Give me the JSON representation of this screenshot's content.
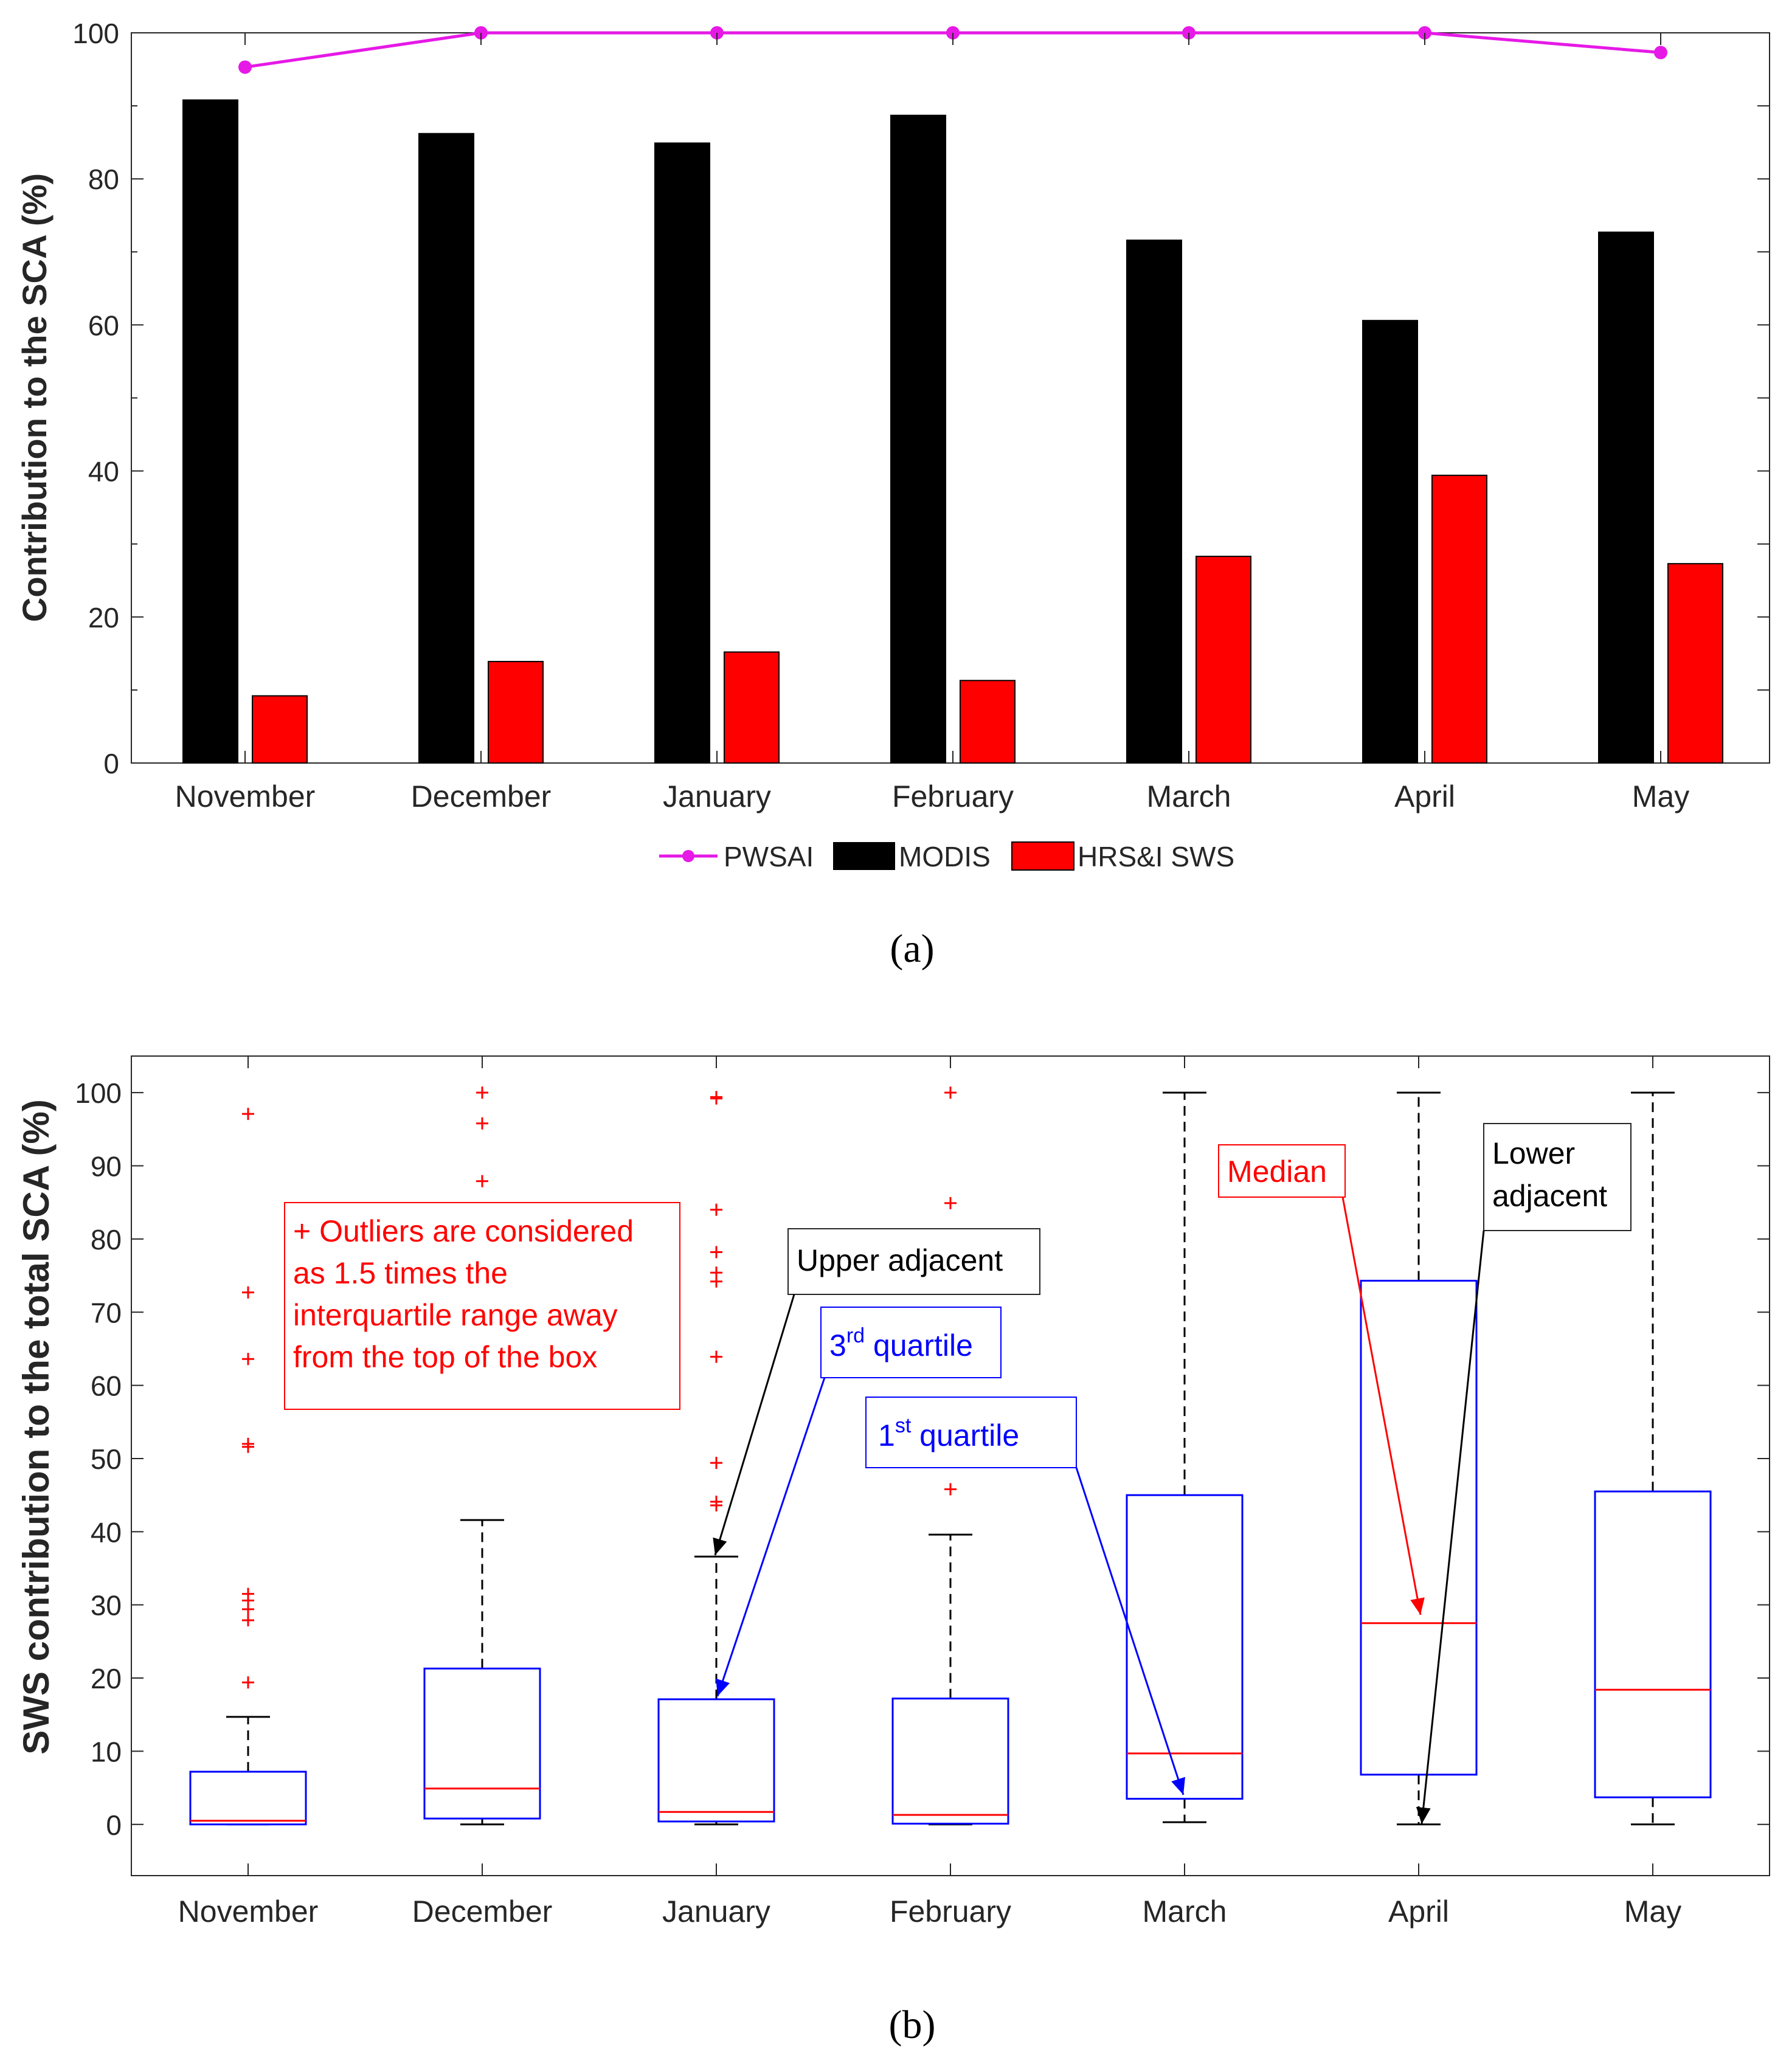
{
  "chart_data": [
    {
      "type": "bar",
      "panel_label": "(a)",
      "ylabel": "Contribution to the SCA (%)",
      "ylim": [
        0,
        100
      ],
      "yticks": [
        0,
        20,
        40,
        60,
        80,
        100
      ],
      "categories": [
        "November",
        "December",
        "January",
        "February",
        "March",
        "April",
        "May"
      ],
      "series": [
        {
          "name": "MODIS",
          "kind": "bar",
          "color": "#000000",
          "values": [
            90.8,
            86.2,
            84.9,
            88.7,
            71.6,
            60.6,
            72.7
          ]
        },
        {
          "name": "HRS&I SWS",
          "kind": "bar",
          "color": "#ff0000",
          "values": [
            9.2,
            13.9,
            15.2,
            11.3,
            28.3,
            39.4,
            27.3
          ]
        },
        {
          "name": "PWSAI",
          "kind": "line",
          "color": "#e619e6",
          "values": [
            95.3,
            100,
            100,
            100,
            100,
            100,
            97.3
          ]
        }
      ],
      "legend": [
        "PWSAI",
        "MODIS",
        "HRS&I SWS"
      ]
    },
    {
      "type": "boxplot",
      "panel_label": "(b)",
      "ylabel": "SWS contribution to the total SCA (%)",
      "ylim": [
        -7,
        105
      ],
      "yticks": [
        0,
        10,
        20,
        30,
        40,
        50,
        60,
        70,
        80,
        90,
        100
      ],
      "categories": [
        "November",
        "December",
        "January",
        "February",
        "March",
        "April",
        "May"
      ],
      "boxes": [
        {
          "lower_adjacent": 0,
          "q1": 0,
          "median": 0.5,
          "q3": 7.2,
          "upper_adjacent": 14.7,
          "outliers": [
            19.4,
            27.9,
            29.4,
            30.6,
            31.5,
            51.6,
            52,
            63.6,
            72.7,
            97.1
          ]
        },
        {
          "lower_adjacent": 0,
          "q1": 0.8,
          "median": 4.9,
          "q3": 21.3,
          "upper_adjacent": 41.6,
          "outliers": [
            87.9,
            95.8,
            100
          ]
        },
        {
          "lower_adjacent": 0,
          "q1": 0.4,
          "median": 1.7,
          "q3": 17.1,
          "upper_adjacent": 36.6,
          "outliers": [
            43.6,
            44.1,
            49.4,
            63.9,
            74.2,
            75.4,
            78.2,
            84,
            99.2,
            99.4
          ]
        },
        {
          "lower_adjacent": 0,
          "q1": 0.1,
          "median": 1.3,
          "q3": 17.2,
          "upper_adjacent": 39.6,
          "outliers": [
            45.8,
            84.9,
            100
          ]
        },
        {
          "lower_adjacent": 0.3,
          "q1": 3.5,
          "median": 9.7,
          "q3": 45,
          "upper_adjacent": 100,
          "outliers": []
        },
        {
          "lower_adjacent": 0,
          "q1": 6.8,
          "median": 27.5,
          "q3": 74.3,
          "upper_adjacent": 100,
          "outliers": []
        },
        {
          "lower_adjacent": 0,
          "q1": 3.7,
          "median": 18.4,
          "q3": 45.5,
          "upper_adjacent": 100,
          "outliers": []
        }
      ],
      "annotations": {
        "outliers_note": [
          "+ Outliers are considered",
          "as 1.5 times the",
          "interquartile range away",
          "from the top of the box"
        ],
        "upper_adjacent": "Upper adjacent",
        "third_quartile": {
          "base": "3",
          "sup": "rd",
          "rest": " quartile"
        },
        "first_quartile": {
          "base": "1",
          "sup": "st",
          "rest": " quartile"
        },
        "median": "Median",
        "lower_adjacent": [
          "Lower",
          "adjacent"
        ]
      }
    }
  ],
  "colors": {
    "box": "#0000ff",
    "median": "#ff0000",
    "whisker": "#000000",
    "annotation_red": "#ff0000",
    "annotation_blue": "#0000ff"
  }
}
